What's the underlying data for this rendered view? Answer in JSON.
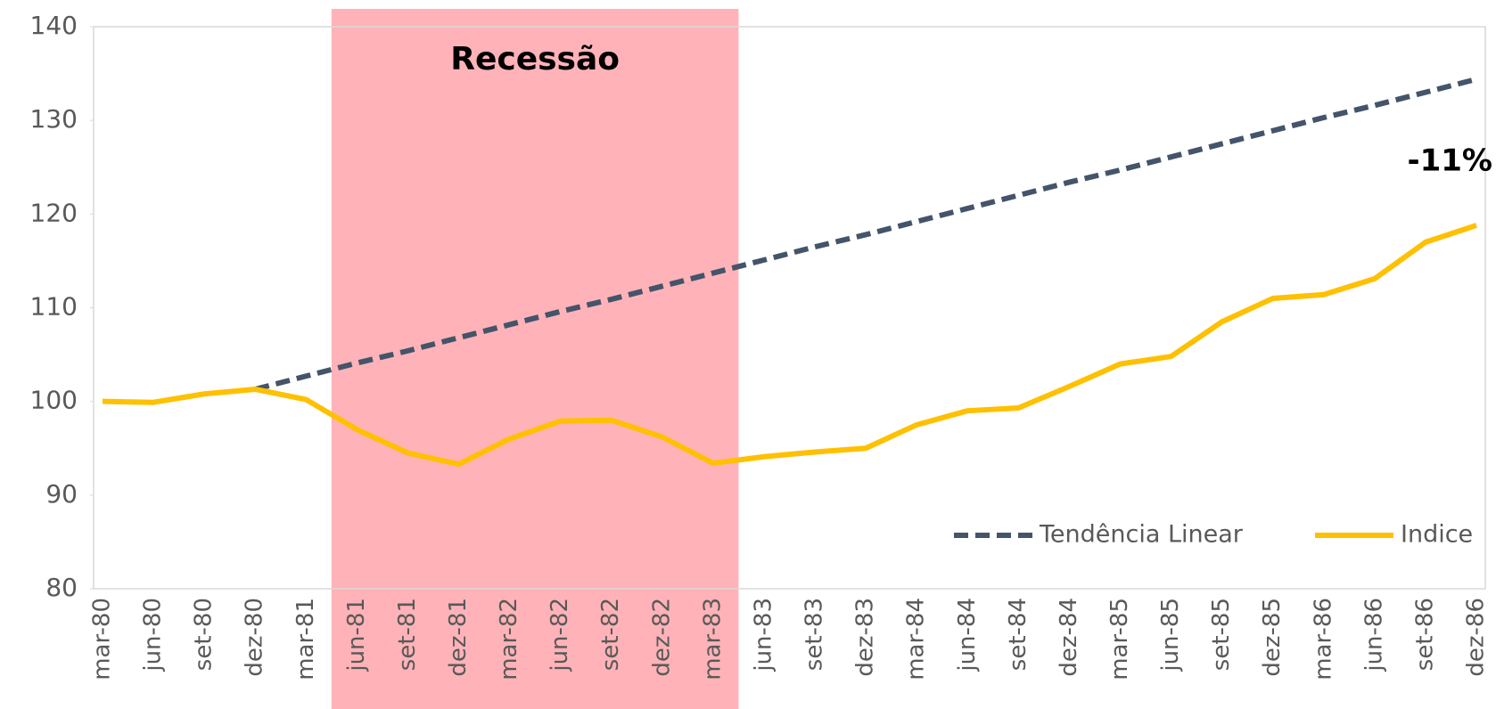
{
  "chart_data": {
    "type": "line",
    "categories": [
      "mar-80",
      "jun-80",
      "set-80",
      "dez-80",
      "mar-81",
      "jun-81",
      "set-81",
      "dez-81",
      "mar-82",
      "jun-82",
      "set-82",
      "dez-82",
      "mar-83",
      "jun-83",
      "set-83",
      "dez-83",
      "mar-84",
      "jun-84",
      "set-84",
      "dez-84",
      "mar-85",
      "jun-85",
      "set-85",
      "dez-85",
      "mar-86",
      "jun-86",
      "set-86",
      "dez-86"
    ],
    "series": [
      {
        "name": "Tendência Linear",
        "color": "#44546a",
        "dashed": true,
        "values": [
          null,
          null,
          null,
          101.3,
          102.7,
          104.1,
          105.4,
          106.8,
          108.2,
          109.6,
          110.9,
          112.3,
          113.7,
          115.1,
          116.5,
          117.8,
          119.2,
          120.6,
          122.0,
          123.4,
          124.7,
          126.1,
          127.5,
          128.9,
          130.3,
          131.6,
          133.0,
          134.4
        ]
      },
      {
        "name": "Indice",
        "color": "#ffc000",
        "dashed": false,
        "values": [
          100,
          99.9,
          100.8,
          101.3,
          100.2,
          97,
          94.5,
          93.3,
          96,
          97.9,
          98,
          96.2,
          93.4,
          94.1,
          94.6,
          95,
          97.5,
          99,
          99.3,
          101.6,
          104,
          104.8,
          108.5,
          111,
          111.4,
          113.1,
          117,
          118.8
        ]
      }
    ],
    "ylim": [
      80,
      140
    ],
    "yticks": [
      80,
      90,
      100,
      110,
      120,
      130,
      140
    ],
    "grid": false,
    "legend": "bottom-right",
    "shaded_region": {
      "label": "Recessão",
      "from": "mar-81",
      "to": "mar-83",
      "color": "#ffb3b8"
    },
    "annotations": [
      {
        "text": "-11%"
      }
    ]
  }
}
